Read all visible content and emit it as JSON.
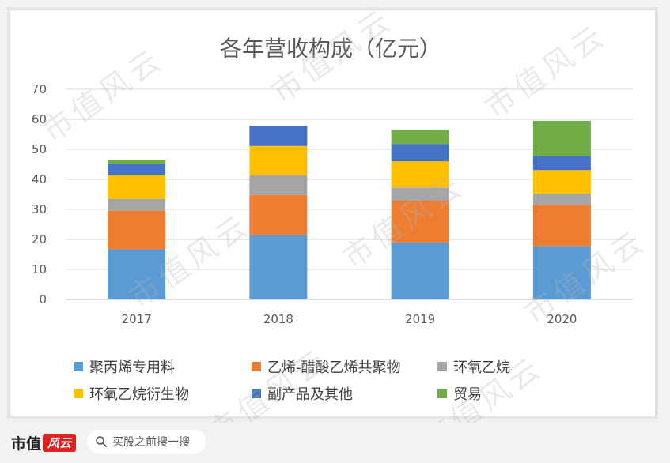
{
  "chart_data": {
    "type": "bar",
    "stacked": true,
    "title": "各年营收构成（亿元）",
    "categories": [
      "2017",
      "2018",
      "2019",
      "2020"
    ],
    "ylim": [
      0,
      70
    ],
    "yticks": [
      0,
      10,
      20,
      30,
      40,
      50,
      60,
      70
    ],
    "grid": true,
    "legend_position": "bottom",
    "series": [
      {
        "name": "聚丙烯专用料",
        "color": "#5b9bd5",
        "values": [
          16.7,
          21.5,
          19.0,
          17.8
        ]
      },
      {
        "name": "乙烯-醋酸乙烯共聚物",
        "color": "#ed7d31",
        "values": [
          12.8,
          13.3,
          13.9,
          13.7
        ]
      },
      {
        "name": "环氧乙烷",
        "color": "#a5a5a5",
        "values": [
          4.0,
          6.5,
          4.4,
          3.8
        ]
      },
      {
        "name": "环氧乙烷衍生物",
        "color": "#ffc000",
        "values": [
          7.8,
          9.8,
          8.7,
          7.8
        ]
      },
      {
        "name": "副产品及其他",
        "color": "#4472c4",
        "values": [
          3.9,
          6.7,
          5.8,
          4.7
        ]
      },
      {
        "name": "贸易",
        "color": "#70ad47",
        "values": [
          1.3,
          0.0,
          4.8,
          11.7
        ]
      }
    ]
  },
  "footer": {
    "brand_name": "市值",
    "brand_badge": "风云",
    "search_text": "买股之前搜一搜"
  },
  "watermark_text": "市值风云"
}
